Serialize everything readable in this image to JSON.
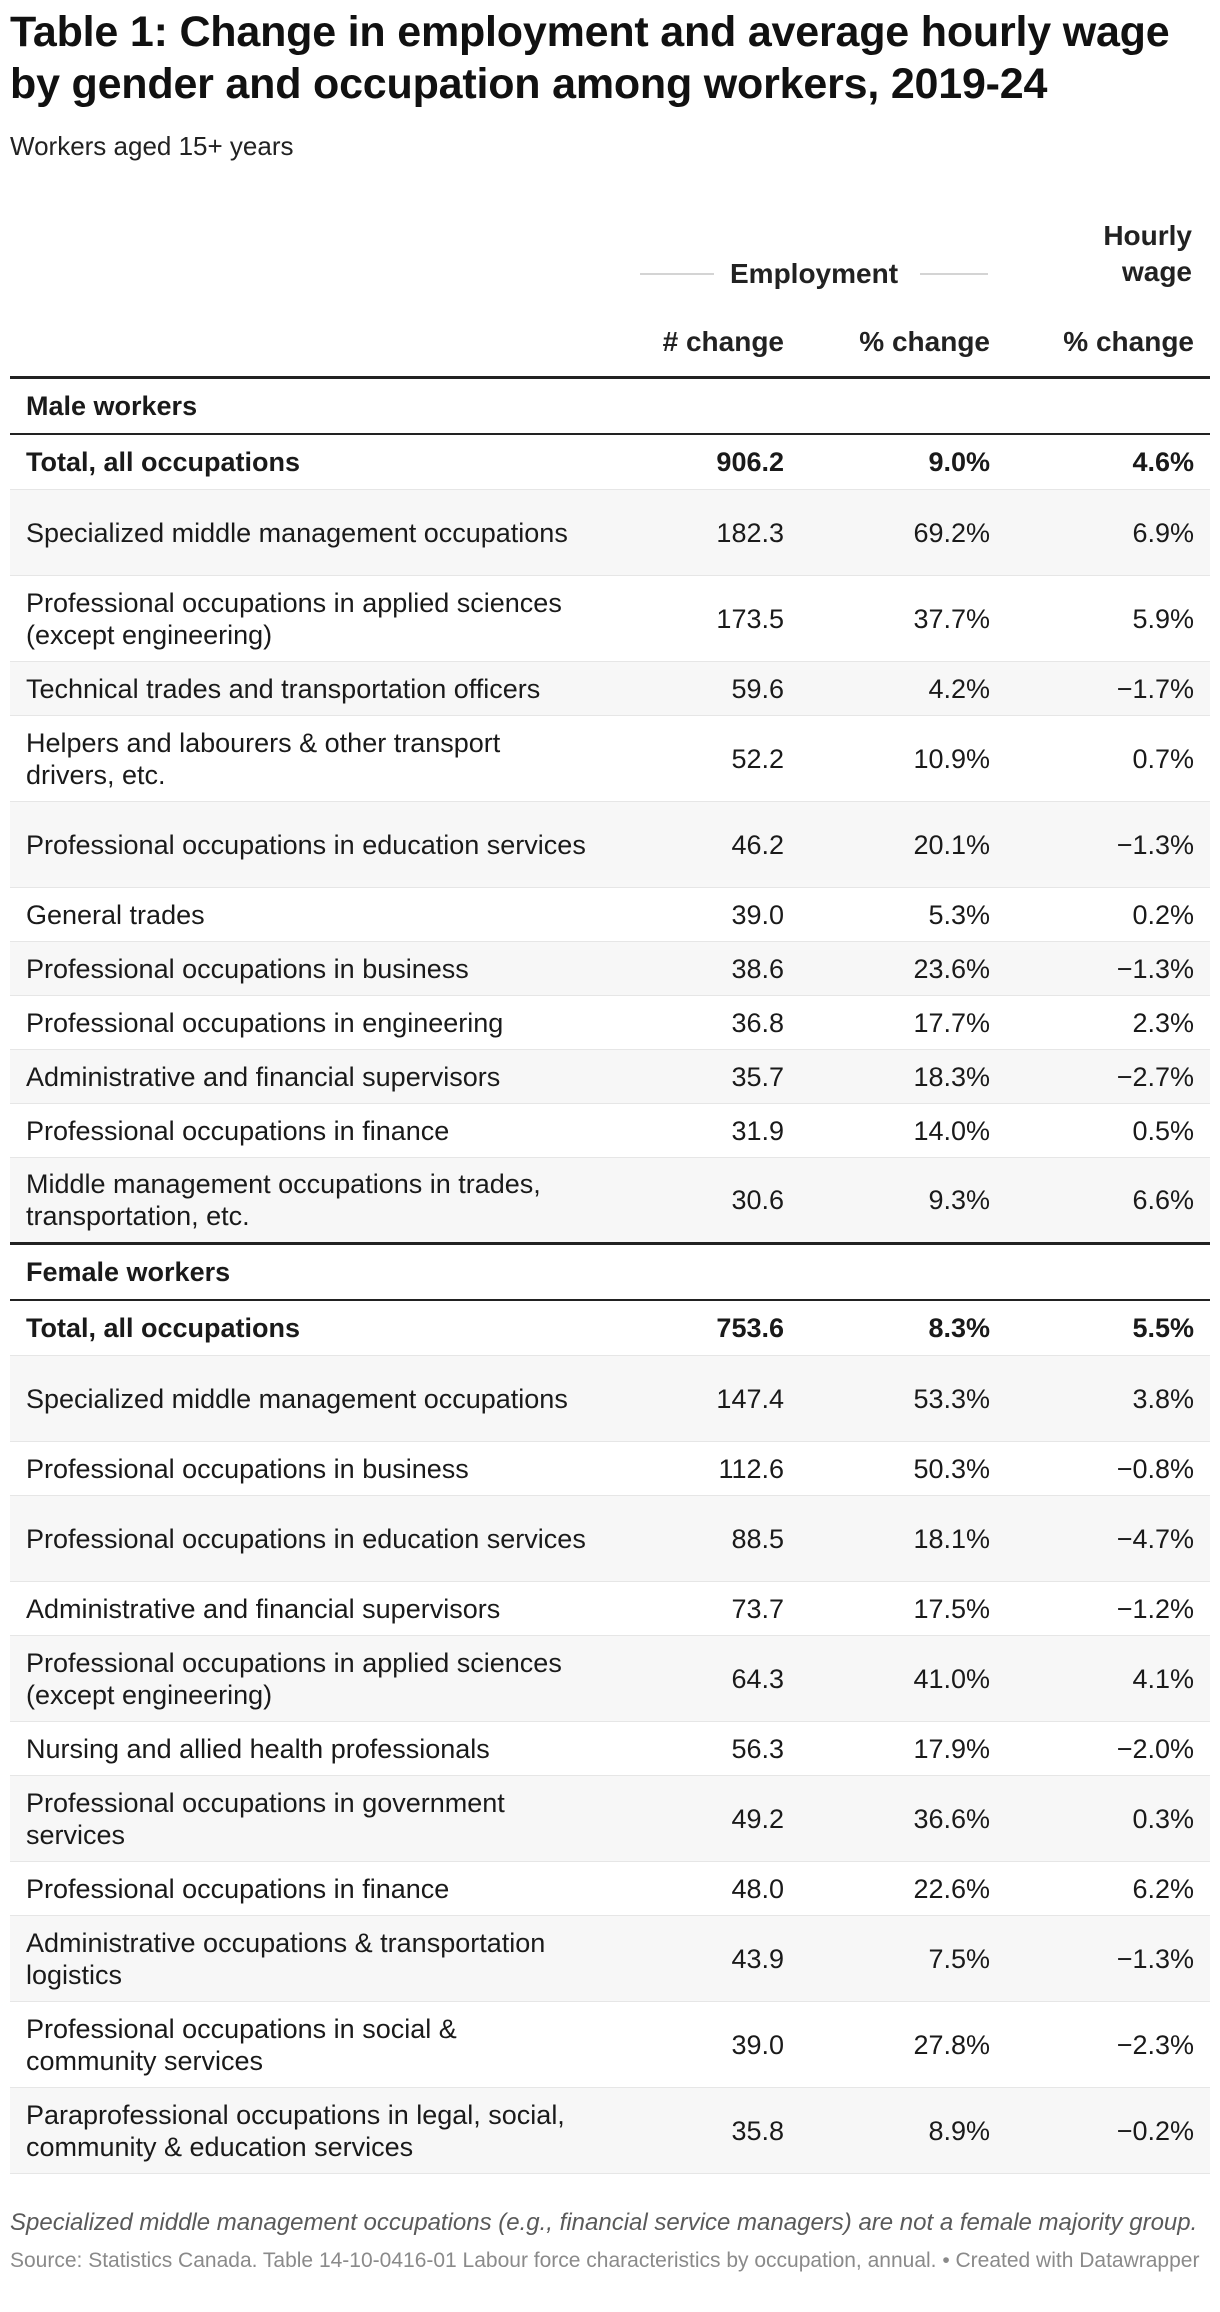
{
  "title": "Table 1: Change in employment and average hourly wage by gender and occupation among workers, 2019-24",
  "subtitle": "Workers aged 15+ years",
  "chart_data": {
    "type": "table",
    "group_headers": {
      "employment": "Employment",
      "hourly_wage": "Hourly wage"
    },
    "columns": [
      "# change",
      "% change",
      "% change"
    ],
    "sections": [
      {
        "label": "Male workers",
        "rows": [
          {
            "occupation": "Total, all occupations",
            "num_change": "906.2",
            "pct_change": "9.0%",
            "wage_change": "4.6%",
            "total": true
          },
          {
            "occupation": "Specialized middle management occupations",
            "num_change": "182.3",
            "pct_change": "69.2%",
            "wage_change": "6.9%"
          },
          {
            "occupation": "Professional occupations in applied sciences (except engineering)",
            "num_change": "173.5",
            "pct_change": "37.7%",
            "wage_change": "5.9%"
          },
          {
            "occupation": "Technical trades and transportation officers",
            "num_change": "59.6",
            "pct_change": "4.2%",
            "wage_change": "−1.7%"
          },
          {
            "occupation": "Helpers and labourers & other transport drivers, etc.",
            "num_change": "52.2",
            "pct_change": "10.9%",
            "wage_change": "0.7%"
          },
          {
            "occupation": "Professional occupations in education services",
            "num_change": "46.2",
            "pct_change": "20.1%",
            "wage_change": "−1.3%"
          },
          {
            "occupation": "General trades",
            "num_change": "39.0",
            "pct_change": "5.3%",
            "wage_change": "0.2%"
          },
          {
            "occupation": "Professional occupations in business",
            "num_change": "38.6",
            "pct_change": "23.6%",
            "wage_change": "−1.3%"
          },
          {
            "occupation": "Professional occupations in engineering",
            "num_change": "36.8",
            "pct_change": "17.7%",
            "wage_change": "2.3%"
          },
          {
            "occupation": "Administrative and financial supervisors",
            "num_change": "35.7",
            "pct_change": "18.3%",
            "wage_change": "−2.7%"
          },
          {
            "occupation": "Professional occupations in finance",
            "num_change": "31.9",
            "pct_change": "14.0%",
            "wage_change": "0.5%"
          },
          {
            "occupation": "Middle management occupations in trades, transportation, etc.",
            "num_change": "30.6",
            "pct_change": "9.3%",
            "wage_change": "6.6%"
          }
        ]
      },
      {
        "label": "Female workers",
        "rows": [
          {
            "occupation": "Total, all occupations",
            "num_change": "753.6",
            "pct_change": "8.3%",
            "wage_change": "5.5%",
            "total": true
          },
          {
            "occupation": "Specialized middle management occupations",
            "num_change": "147.4",
            "pct_change": "53.3%",
            "wage_change": "3.8%"
          },
          {
            "occupation": "Professional occupations in business",
            "num_change": "112.6",
            "pct_change": "50.3%",
            "wage_change": "−0.8%"
          },
          {
            "occupation": "Professional occupations in education services",
            "num_change": "88.5",
            "pct_change": "18.1%",
            "wage_change": "−4.7%"
          },
          {
            "occupation": "Administrative and financial supervisors",
            "num_change": "73.7",
            "pct_change": "17.5%",
            "wage_change": "−1.2%"
          },
          {
            "occupation": "Professional occupations in applied sciences (except engineering)",
            "num_change": "64.3",
            "pct_change": "41.0%",
            "wage_change": "4.1%"
          },
          {
            "occupation": "Nursing and allied health professionals",
            "num_change": "56.3",
            "pct_change": "17.9%",
            "wage_change": "−2.0%"
          },
          {
            "occupation": "Professional occupations in government services",
            "num_change": "49.2",
            "pct_change": "36.6%",
            "wage_change": "0.3%"
          },
          {
            "occupation": "Professional occupations in finance",
            "num_change": "48.0",
            "pct_change": "22.6%",
            "wage_change": "6.2%"
          },
          {
            "occupation": "Administrative occupations & transportation logistics",
            "num_change": "43.9",
            "pct_change": "7.5%",
            "wage_change": "−1.3%"
          },
          {
            "occupation": "Professional occupations in social & community services",
            "num_change": "39.0",
            "pct_change": "27.8%",
            "wage_change": "−2.3%"
          },
          {
            "occupation": "Paraprofessional occupations in legal, social, community & education services",
            "num_change": "35.8",
            "pct_change": "8.9%",
            "wage_change": "−0.2%"
          }
        ]
      }
    ]
  },
  "note": "Specialized middle management occupations (e.g., financial service managers) are not a female majority group.",
  "source": "Source: Statistics Canada. Table 14-10-0416-01 Labour force characteristics by occupation, annual. • Created with Datawrapper"
}
